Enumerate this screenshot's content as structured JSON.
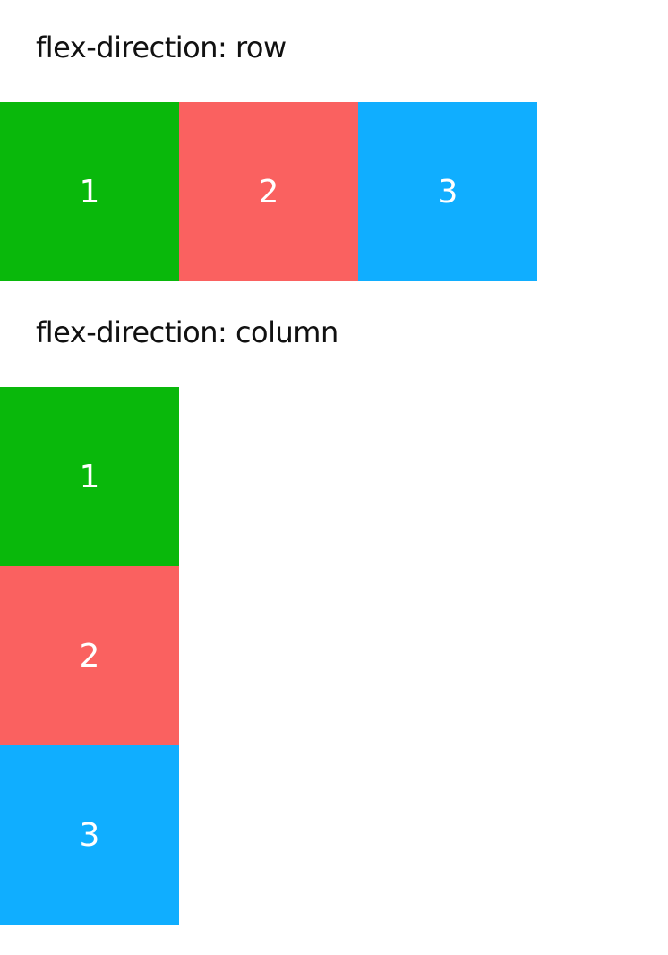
{
  "sections": {
    "row": {
      "label": "flex-direction: row",
      "items": [
        {
          "label": "1",
          "color": "#09b80b"
        },
        {
          "label": "2",
          "color": "#fa6160"
        },
        {
          "label": "3",
          "color": "#10aeff"
        }
      ]
    },
    "column": {
      "label": "flex-direction: column",
      "items": [
        {
          "label": "1",
          "color": "#09b80b"
        },
        {
          "label": "2",
          "color": "#fa6160"
        },
        {
          "label": "3",
          "color": "#10aeff"
        }
      ]
    }
  }
}
